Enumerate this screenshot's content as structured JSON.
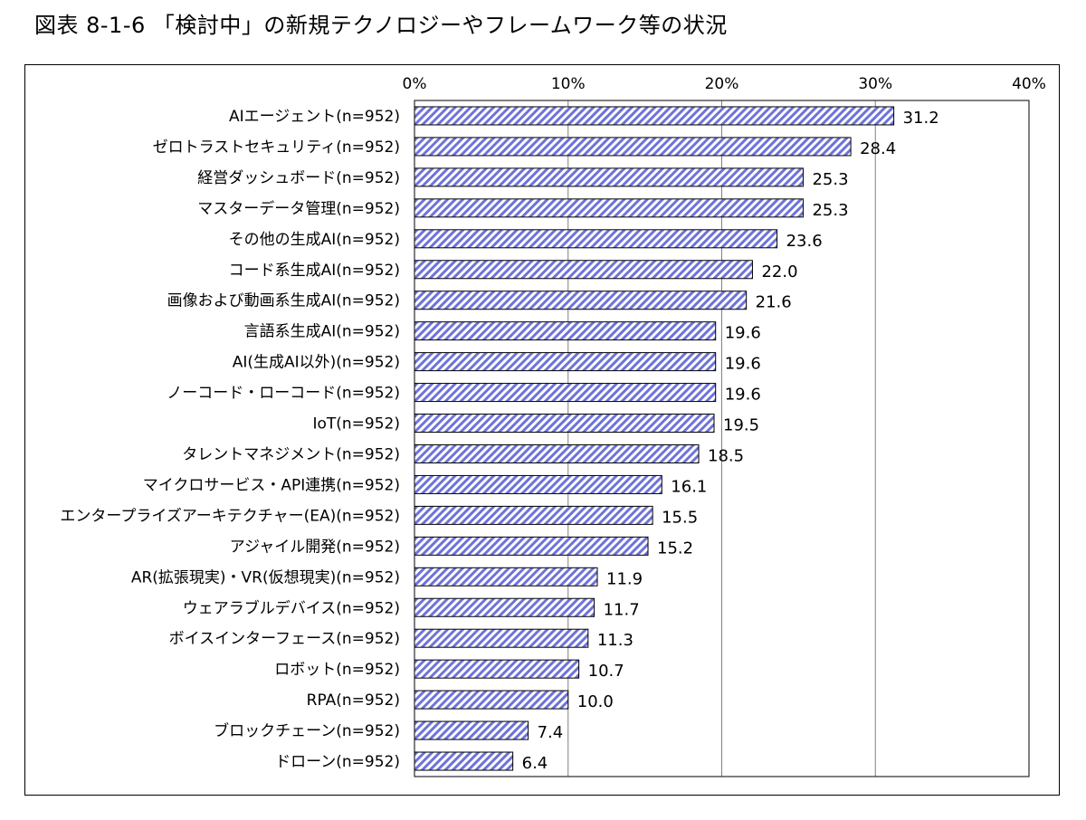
{
  "title": "図表 8-1-6 「検討中」の新規テクノロジーやフレームワーク等の状況",
  "chart_data": {
    "type": "bar",
    "orientation": "horizontal",
    "xlim": [
      0,
      40
    ],
    "xticks": [
      "0%",
      "10%",
      "20%",
      "30%",
      "40%"
    ],
    "grid": true,
    "categories": [
      "AIエージェント(n=952)",
      "ゼロトラストセキュリティ(n=952)",
      "経営ダッシュボード(n=952)",
      "マスターデータ管理(n=952)",
      "その他の生成AI(n=952)",
      "コード系生成AI(n=952)",
      "画像および動画系生成AI(n=952)",
      "言語系生成AI(n=952)",
      "AI(生成AI以外)(n=952)",
      "ノーコード・ローコード(n=952)",
      "IoT(n=952)",
      "タレントマネジメント(n=952)",
      "マイクロサービス・API連携(n=952)",
      "エンタープライズアーキテクチャー(EA)(n=952)",
      "アジャイル開発(n=952)",
      "AR(拡張現実)・VR(仮想現実)(n=952)",
      "ウェアラブルデバイス(n=952)",
      "ボイスインターフェース(n=952)",
      "ロボット(n=952)",
      "RPA(n=952)",
      "ブロックチェーン(n=952)",
      "ドローン(n=952)"
    ],
    "values": [
      31.2,
      28.4,
      25.3,
      25.3,
      23.6,
      22.0,
      21.6,
      19.6,
      19.6,
      19.6,
      19.5,
      18.5,
      16.1,
      15.5,
      15.2,
      11.9,
      11.7,
      11.3,
      10.7,
      10.0,
      7.4,
      6.4
    ],
    "value_labels": [
      "31.2",
      "28.4",
      "25.3",
      "25.3",
      "23.6",
      "22.0",
      "21.6",
      "19.6",
      "19.6",
      "19.6",
      "19.5",
      "18.5",
      "16.1",
      "15.5",
      "15.2",
      "11.9",
      "11.7",
      "11.3",
      "10.7",
      "10.0",
      "7.4",
      "6.4"
    ],
    "bar_color": "#6e73d8"
  }
}
